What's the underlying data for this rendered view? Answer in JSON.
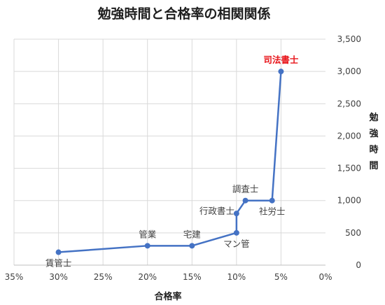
{
  "chart_data": {
    "type": "line",
    "title": "勉強時間と合格率の相関関係",
    "xlabel": "合格率",
    "ylabel": "勉強時間",
    "x_reversed": true,
    "xlim": [
      0,
      35
    ],
    "ylim": [
      0,
      3500
    ],
    "x_ticks": [
      "35%",
      "30%",
      "25%",
      "20%",
      "15%",
      "10%",
      "5%",
      "0%"
    ],
    "x_tick_values": [
      35,
      30,
      25,
      20,
      15,
      10,
      5,
      0
    ],
    "y_ticks": [
      "0",
      "500",
      "1,000",
      "1,500",
      "2,000",
      "2,500",
      "3,000",
      "3,500"
    ],
    "y_tick_values": [
      0,
      500,
      1000,
      1500,
      2000,
      2500,
      3000,
      3500
    ],
    "grid": true,
    "y_axis_side": "right",
    "highlight_color": "#e8141a",
    "series_color": "#4472c4",
    "points": [
      {
        "label": "賃管士",
        "x": 30,
        "y": 200,
        "label_pos": "below",
        "highlight": false
      },
      {
        "label": "管業",
        "x": 20,
        "y": 300,
        "label_pos": "above",
        "highlight": false
      },
      {
        "label": "宅建",
        "x": 15,
        "y": 300,
        "label_pos": "above",
        "highlight": false
      },
      {
        "label": "マン管",
        "x": 10,
        "y": 500,
        "label_pos": "below",
        "highlight": false
      },
      {
        "label": "行政書士",
        "x": 10,
        "y": 800,
        "label_pos": "left",
        "highlight": false
      },
      {
        "label": "調査士",
        "x": 9,
        "y": 1000,
        "label_pos": "above",
        "highlight": false
      },
      {
        "label": "社労士",
        "x": 6,
        "y": 1000,
        "label_pos": "below",
        "highlight": false
      },
      {
        "label": "司法書士",
        "x": 5,
        "y": 3000,
        "label_pos": "above",
        "highlight": true
      }
    ]
  }
}
